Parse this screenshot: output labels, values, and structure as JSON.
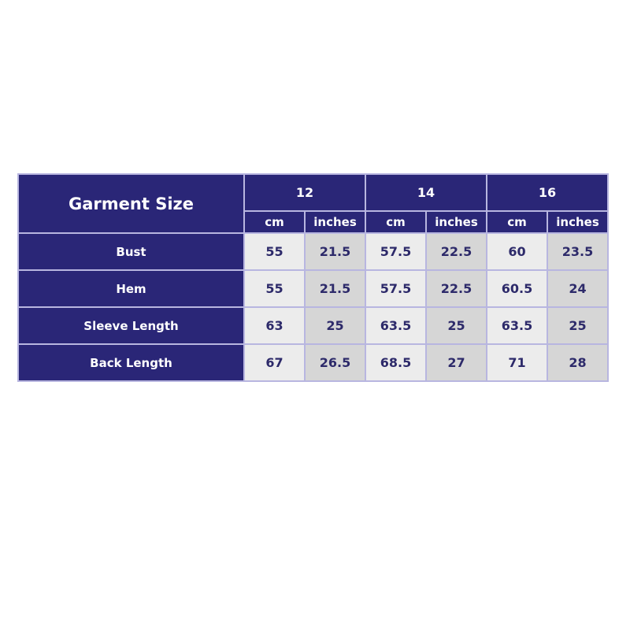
{
  "table": {
    "corner_label": "Garment Size",
    "sizes": [
      "12",
      "14",
      "16"
    ],
    "unit_labels": {
      "cm": "cm",
      "inches": "inches"
    },
    "rows": [
      {
        "label": "Bust",
        "values": [
          "55",
          "21.5",
          "57.5",
          "22.5",
          "60",
          "23.5"
        ]
      },
      {
        "label": "Hem",
        "values": [
          "55",
          "21.5",
          "57.5",
          "22.5",
          "60.5",
          "24"
        ]
      },
      {
        "label": "Sleeve Length",
        "values": [
          "63",
          "25",
          "63.5",
          "25",
          "63.5",
          "25"
        ]
      },
      {
        "label": "Back Length",
        "values": [
          "67",
          "26.5",
          "68.5",
          "27",
          "71",
          "28"
        ]
      }
    ],
    "colors": {
      "header": "#2a2677",
      "cm_cell": "#ececec",
      "inches_cell": "#d6d6d6",
      "value_text": "#2d2a6a"
    }
  }
}
